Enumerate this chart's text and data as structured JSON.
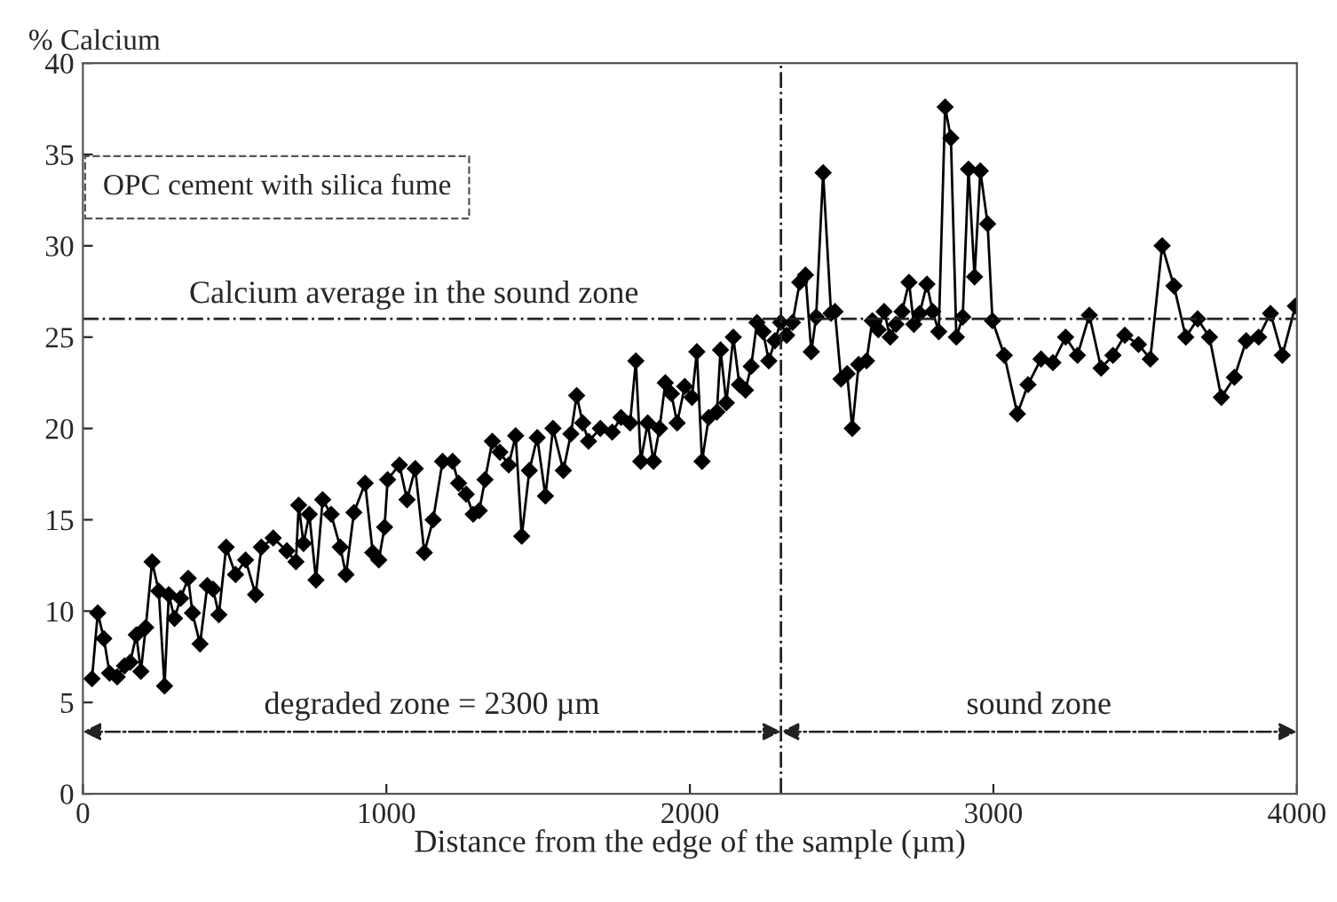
{
  "chart_data": {
    "type": "line",
    "xlabel": "Distance from the edge of the sample (µm)",
    "ylabel": "% Calcium",
    "x": [
      30,
      49,
      69,
      88,
      113,
      137,
      156,
      176,
      191,
      207,
      228,
      250,
      269,
      283,
      302,
      322,
      347,
      361,
      386,
      410,
      429,
      448,
      472,
      503,
      536,
      569,
      588,
      627,
      672,
      702,
      711,
      727,
      746,
      768,
      790,
      818,
      848,
      867,
      893,
      930,
      955,
      975,
      994,
      1004,
      1043,
      1068,
      1095,
      1125,
      1154,
      1185,
      1218,
      1238,
      1263,
      1286,
      1306,
      1325,
      1349,
      1374,
      1403,
      1426,
      1446,
      1471,
      1497,
      1524,
      1549,
      1583,
      1608,
      1627,
      1647,
      1666,
      1705,
      1744,
      1773,
      1803,
      1822,
      1838,
      1861,
      1880,
      1900,
      1919,
      1939,
      1958,
      1983,
      2007,
      2023,
      2040,
      2062,
      2089,
      2101,
      2120,
      2143,
      2163,
      2183,
      2202,
      2221,
      2241,
      2260,
      2280,
      2299,
      2319,
      2338,
      2362,
      2381,
      2400,
      2416,
      2439,
      2465,
      2478,
      2498,
      2518,
      2535,
      2556,
      2582,
      2601,
      2621,
      2640,
      2660,
      2679,
      2699,
      2722,
      2738,
      2757,
      2781,
      2800,
      2820,
      2841,
      2860,
      2878,
      2899,
      2918,
      2938,
      2957,
      2981,
      2997,
      3036,
      3079,
      3114,
      3157,
      3196,
      3238,
      3277,
      3316,
      3355,
      3394,
      3433,
      3478,
      3517,
      3556,
      3595,
      3634,
      3673,
      3712,
      3751,
      3794,
      3833,
      3874,
      3913,
      3952,
      3995
    ],
    "series": [
      {
        "color": "#000000",
        "values": [
          6.3,
          9.9,
          8.5,
          6.6,
          6.4,
          7.0,
          7.2,
          8.7,
          6.7,
          9.1,
          12.7,
          11.1,
          5.9,
          10.9,
          9.6,
          10.7,
          11.8,
          9.9,
          8.2,
          11.4,
          11.2,
          9.8,
          13.5,
          12.0,
          12.8,
          10.9,
          13.5,
          14.0,
          13.3,
          12.7,
          15.8,
          13.7,
          15.3,
          11.7,
          16.1,
          15.3,
          13.5,
          12.0,
          15.4,
          17.0,
          13.2,
          12.8,
          14.6,
          17.2,
          18.0,
          16.1,
          17.8,
          13.2,
          15.0,
          18.2,
          18.2,
          17.0,
          16.4,
          15.3,
          15.5,
          17.2,
          19.3,
          18.7,
          18.0,
          19.6,
          14.1,
          17.7,
          19.5,
          16.3,
          20.0,
          17.7,
          19.7,
          21.8,
          20.3,
          19.3,
          20.0,
          19.8,
          20.6,
          20.3,
          23.7,
          18.2,
          20.3,
          18.2,
          20.0,
          22.5,
          21.9,
          20.3,
          22.3,
          21.7,
          24.2,
          18.2,
          20.6,
          20.9,
          24.3,
          21.4,
          25.0,
          22.4,
          22.1,
          23.4,
          25.8,
          25.3,
          23.7,
          24.8,
          25.8,
          25.1,
          25.8,
          28.0,
          28.4,
          24.2,
          26.1,
          34.0,
          26.3,
          26.4,
          22.7,
          23.0,
          20.0,
          23.5,
          23.7,
          25.9,
          25.4,
          26.4,
          25.0,
          25.7,
          26.4,
          28.0,
          25.7,
          26.3,
          27.9,
          26.4,
          25.3,
          37.6,
          35.9,
          25.0,
          26.1,
          34.2,
          28.3,
          34.1,
          31.2,
          25.9,
          24.0,
          20.8,
          22.4,
          23.8,
          23.6,
          25.0,
          24.0,
          26.2,
          23.3,
          24.0,
          25.1,
          24.6,
          23.8,
          30.0,
          27.8,
          25.0,
          26.0,
          25.0,
          21.7,
          22.8,
          24.8,
          25.0,
          26.3,
          24.0,
          26.7
        ]
      }
    ],
    "xlim": [
      0,
      4000
    ],
    "xticks": [
      0,
      1000,
      2000,
      3000,
      4000
    ],
    "ylim": [
      0,
      40
    ],
    "yticks": [
      0,
      5,
      10,
      15,
      20,
      25,
      30,
      35,
      40
    ],
    "marker": "diamond",
    "line_style": "solid",
    "grid": false,
    "legend": false,
    "ref_lines": [
      {
        "axis": "y",
        "value": 26,
        "label": "Calcium average in the sound zone",
        "line_style": "dashdot"
      },
      {
        "axis": "x",
        "value": 2300,
        "line_style": "dashdot"
      }
    ],
    "annotations": [
      "OPC cement with silica fume",
      "degraded zone = 2300 µm",
      "sound zone"
    ]
  }
}
